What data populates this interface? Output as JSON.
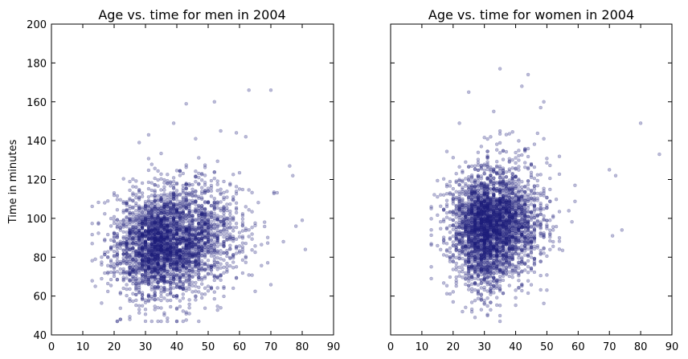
{
  "chart_data": [
    {
      "type": "scatter",
      "title": "Age vs. time for men in 2004",
      "xlabel": "",
      "ylabel": "Time in minutes",
      "xlim": [
        0,
        90
      ],
      "ylim": [
        40,
        200
      ],
      "xticks": [
        "0",
        "10",
        "20",
        "30",
        "40",
        "50",
        "60",
        "70",
        "80",
        "90"
      ],
      "yticks": [
        "40",
        "60",
        "80",
        "100",
        "120",
        "140",
        "160",
        "180",
        "200"
      ],
      "show_yticklabels": true,
      "grid": false,
      "marker_color": "#1f1f7a",
      "marker_alpha": 0.3,
      "cluster": {
        "age_center": 37,
        "age_spread": 11,
        "age_min": 13,
        "age_max": 81,
        "time_center": 88,
        "time_spread": 14,
        "n_points": 3200
      },
      "outliers": [
        {
          "x": 63,
          "y": 166
        },
        {
          "x": 70,
          "y": 166
        },
        {
          "x": 52,
          "y": 160
        },
        {
          "x": 43,
          "y": 159
        },
        {
          "x": 39,
          "y": 149
        },
        {
          "x": 54,
          "y": 145
        },
        {
          "x": 59,
          "y": 144
        },
        {
          "x": 31,
          "y": 143
        },
        {
          "x": 62,
          "y": 142
        },
        {
          "x": 46,
          "y": 141
        },
        {
          "x": 28,
          "y": 139
        },
        {
          "x": 76,
          "y": 127
        },
        {
          "x": 77,
          "y": 122
        },
        {
          "x": 80,
          "y": 99
        },
        {
          "x": 81,
          "y": 84
        },
        {
          "x": 78,
          "y": 96
        },
        {
          "x": 74,
          "y": 88
        },
        {
          "x": 13,
          "y": 87
        },
        {
          "x": 14,
          "y": 79
        },
        {
          "x": 22,
          "y": 48
        },
        {
          "x": 25,
          "y": 48
        },
        {
          "x": 29,
          "y": 55
        }
      ]
    },
    {
      "type": "scatter",
      "title": "Age vs. time for women in 2004",
      "xlabel": "",
      "ylabel": "",
      "xlim": [
        0,
        90
      ],
      "ylim": [
        40,
        200
      ],
      "xticks": [
        "0",
        "10",
        "20",
        "30",
        "40",
        "50",
        "60",
        "70",
        "80",
        "90"
      ],
      "yticks": [
        "40",
        "60",
        "80",
        "100",
        "120",
        "140",
        "160",
        "180",
        "200"
      ],
      "show_yticklabels": false,
      "grid": false,
      "marker_color": "#1f1f7a",
      "marker_alpha": 0.3,
      "cluster": {
        "age_center": 32,
        "age_spread": 8,
        "age_min": 13,
        "age_max": 86,
        "time_center": 96,
        "time_spread": 15,
        "n_points": 3200
      },
      "outliers": [
        {
          "x": 35,
          "y": 177
        },
        {
          "x": 44,
          "y": 174
        },
        {
          "x": 42,
          "y": 168
        },
        {
          "x": 25,
          "y": 165
        },
        {
          "x": 49,
          "y": 160
        },
        {
          "x": 48,
          "y": 157
        },
        {
          "x": 33,
          "y": 155
        },
        {
          "x": 80,
          "y": 149
        },
        {
          "x": 22,
          "y": 149
        },
        {
          "x": 86,
          "y": 133
        },
        {
          "x": 70,
          "y": 125
        },
        {
          "x": 72,
          "y": 122
        },
        {
          "x": 74,
          "y": 94
        },
        {
          "x": 71,
          "y": 91
        },
        {
          "x": 13,
          "y": 69
        },
        {
          "x": 20,
          "y": 57
        },
        {
          "x": 23,
          "y": 52
        },
        {
          "x": 29,
          "y": 53
        }
      ]
    }
  ]
}
